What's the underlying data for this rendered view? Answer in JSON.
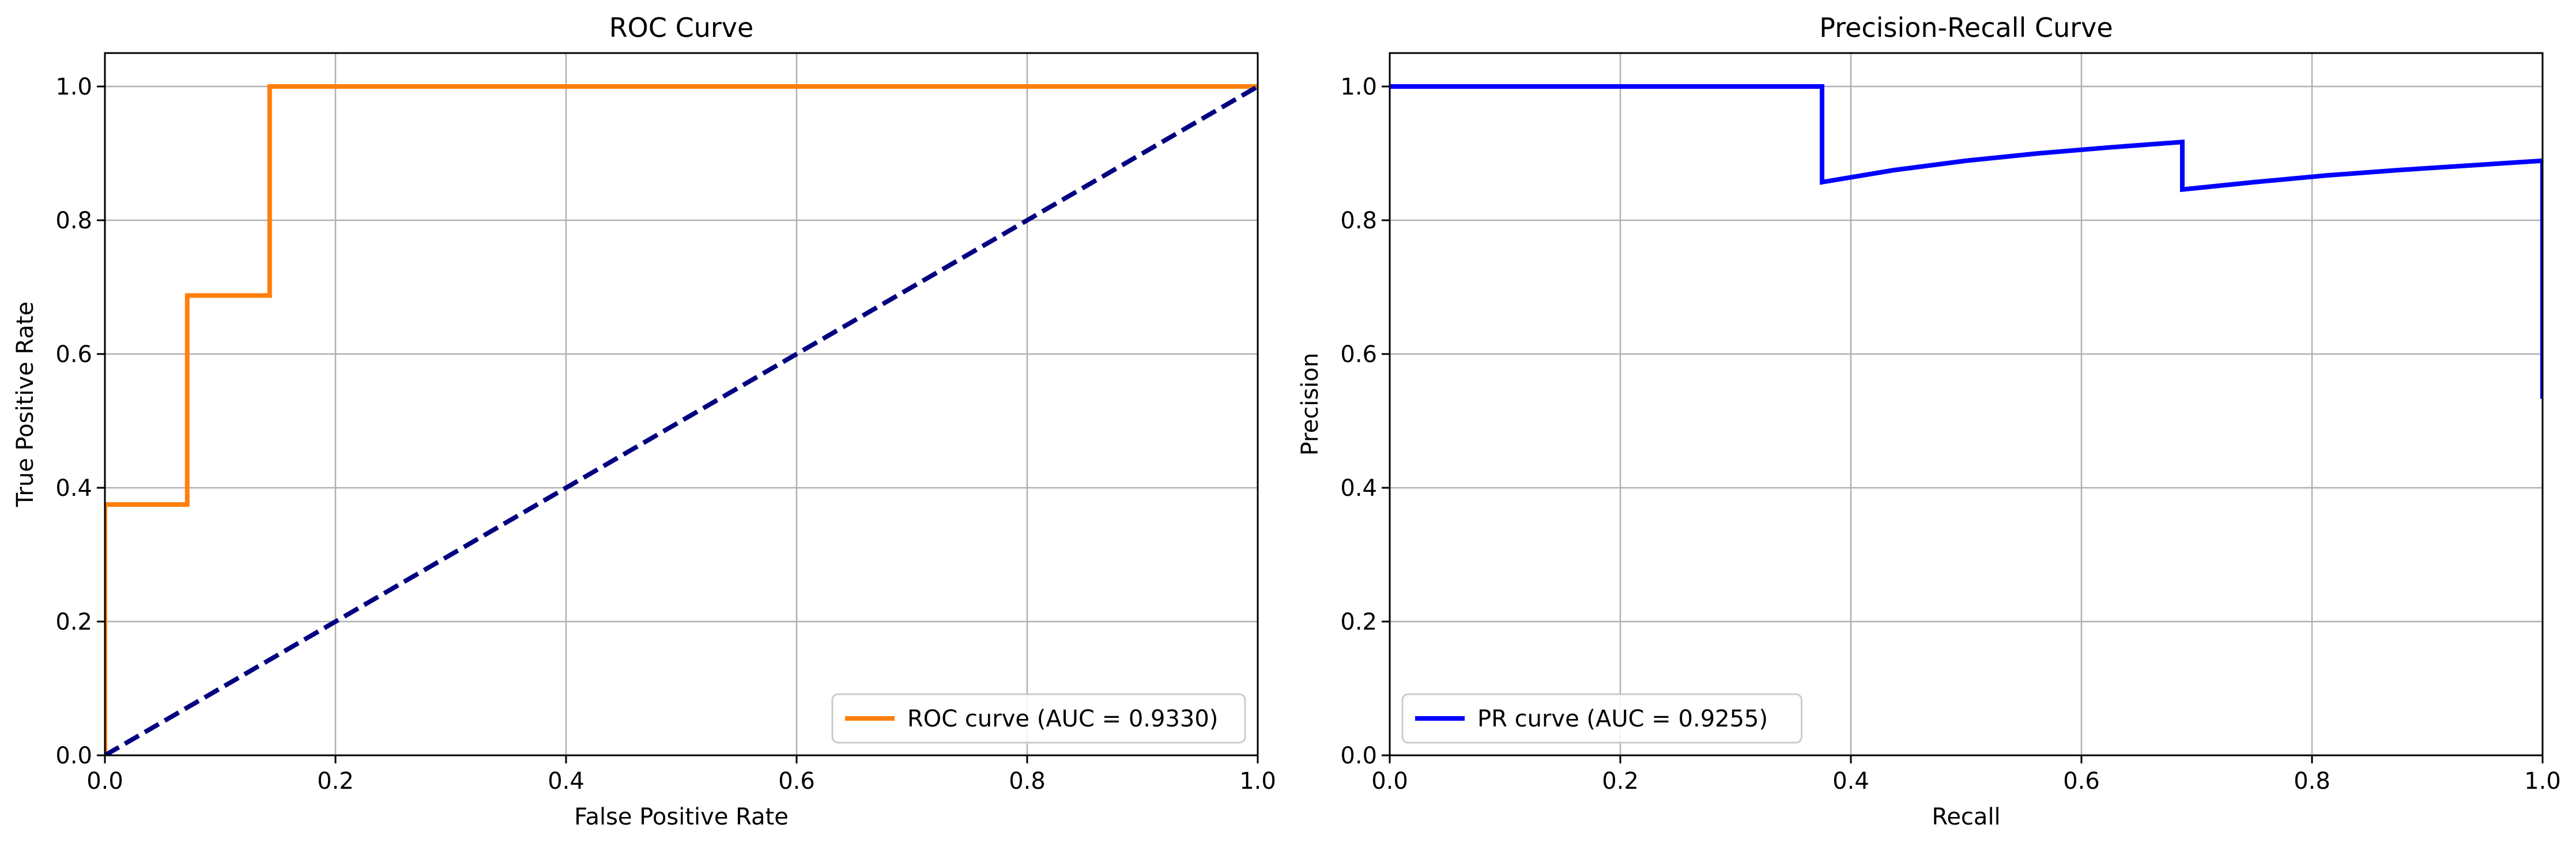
{
  "chart_data": [
    {
      "type": "line",
      "title": "ROC Curve",
      "xlabel": "False Positive Rate",
      "ylabel": "True Positive Rate",
      "xlim": [
        0.0,
        1.0
      ],
      "ylim": [
        0.0,
        1.05
      ],
      "xticks": [
        "0.0",
        "0.2",
        "0.4",
        "0.6",
        "0.8",
        "1.0"
      ],
      "yticks": [
        "0.0",
        "0.2",
        "0.4",
        "0.6",
        "0.8",
        "1.0"
      ],
      "grid": true,
      "legend_position": "lower right",
      "series": [
        {
          "name": "ROC curve (AUC = 0.9330)",
          "color": "#ff7f0e",
          "style": "solid",
          "x": [
            0.0,
            0.0,
            0.0714,
            0.0714,
            0.1429,
            0.1429,
            1.0
          ],
          "y": [
            0.0,
            0.375,
            0.375,
            0.6875,
            0.6875,
            1.0,
            1.0
          ]
        },
        {
          "color": "#000080",
          "style": "dashed",
          "x": [
            0.0,
            1.0
          ],
          "y": [
            0.0,
            1.0
          ]
        }
      ]
    },
    {
      "type": "line",
      "title": "Precision-Recall Curve",
      "xlabel": "Recall",
      "ylabel": "Precision",
      "xlim": [
        0.0,
        1.0
      ],
      "ylim": [
        0.0,
        1.05
      ],
      "xticks": [
        "0.0",
        "0.2",
        "0.4",
        "0.6",
        "0.8",
        "1.0"
      ],
      "yticks": [
        "0.0",
        "0.2",
        "0.4",
        "0.6",
        "0.8",
        "1.0"
      ],
      "grid": true,
      "legend_position": "lower left",
      "series": [
        {
          "name": "PR curve (AUC = 0.9255)",
          "color": "#0000ff",
          "style": "solid",
          "x": [
            0.0,
            0.375,
            0.375,
            0.4375,
            0.5,
            0.5625,
            0.625,
            0.6875,
            0.6875,
            0.75,
            0.8125,
            0.875,
            0.9375,
            1.0,
            1.0
          ],
          "y": [
            1.0,
            1.0,
            0.857,
            0.875,
            0.889,
            0.9,
            0.909,
            0.917,
            0.846,
            0.857,
            0.867,
            0.875,
            0.882,
            0.889,
            0.533
          ]
        }
      ]
    }
  ]
}
